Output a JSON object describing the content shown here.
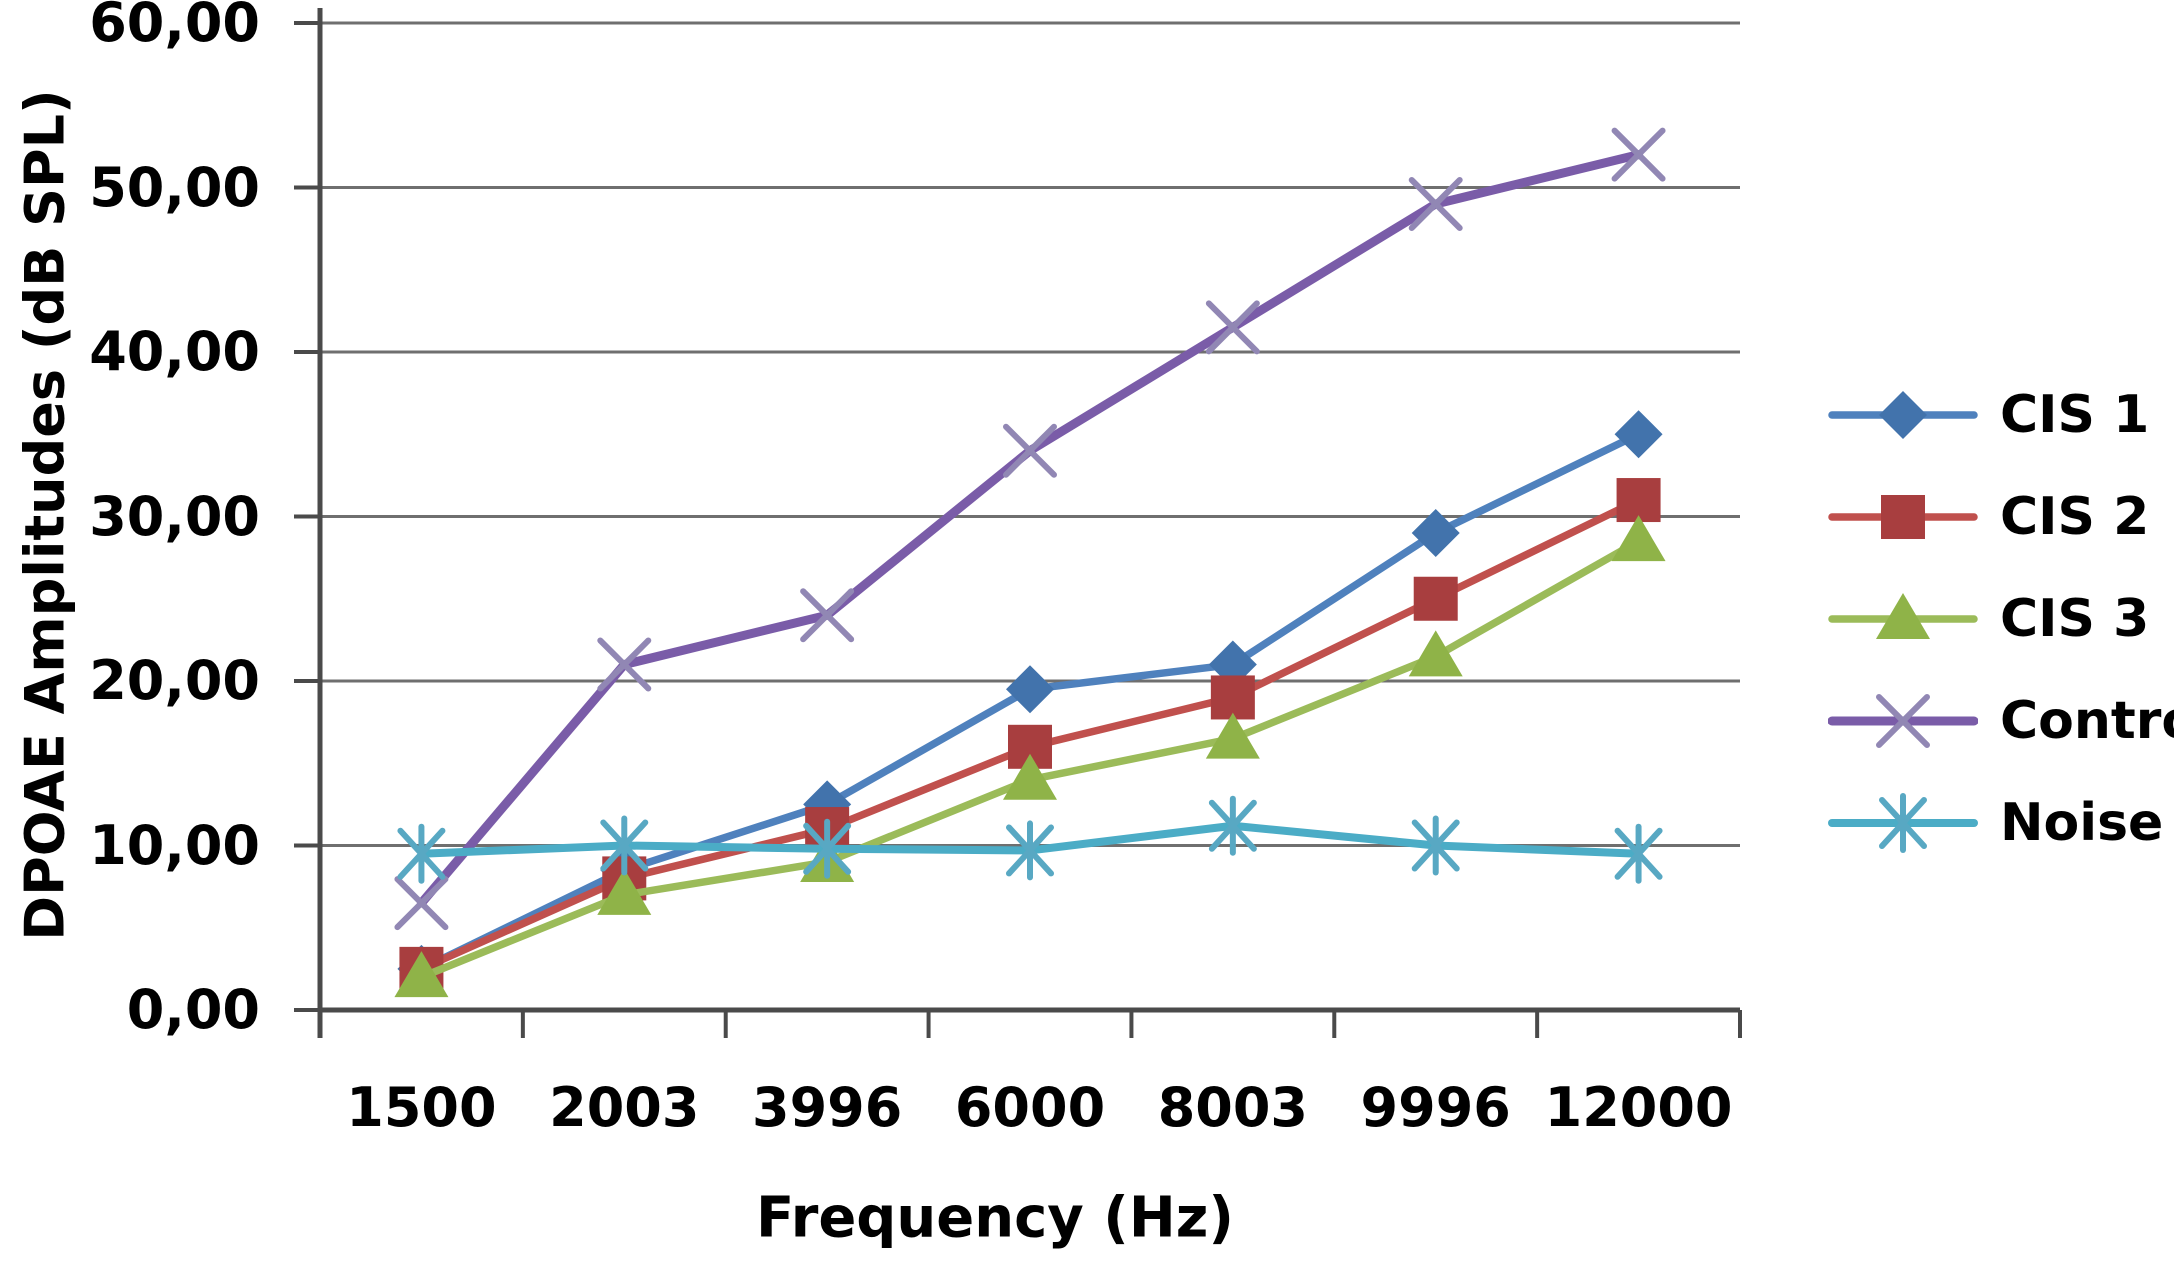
{
  "chart_data": {
    "type": "line",
    "title": "",
    "xlabel": "Frequency (Hz)",
    "ylabel": "DPOAE Amplitudes (dB SPL)",
    "categories": [
      "1500",
      "2003",
      "3996",
      "6000",
      "8003",
      "9996",
      "12000"
    ],
    "y_tick_labels": [
      "0,00",
      "10,00",
      "20,00",
      "30,00",
      "40,00",
      "50,00",
      "60,00"
    ],
    "ylim": [
      0,
      60
    ],
    "y_tick_step": 10,
    "grid": true,
    "legend_position": "right",
    "colors": {
      "grid": "#6F6F6F",
      "axis": "#4A4A4A",
      "text": "#000000",
      "background": "#FFFFFF"
    },
    "series": [
      {
        "name": "CIS 1",
        "marker": "diamond",
        "color": "#4F81BD",
        "marker_color": "#4273AC",
        "values": [
          2.5,
          8.5,
          12.5,
          19.5,
          21,
          29,
          35
        ]
      },
      {
        "name": "CIS 2",
        "marker": "square",
        "color": "#C0504D",
        "marker_color": "#A83E3F",
        "values": [
          2.5,
          8,
          11,
          16,
          19,
          25,
          31
        ]
      },
      {
        "name": "CIS 3",
        "marker": "triangle",
        "color": "#9BBB59",
        "marker_color": "#8FB348",
        "values": [
          2,
          7,
          9,
          14,
          16.5,
          21.5,
          28.5
        ]
      },
      {
        "name": "Control",
        "marker": "x",
        "color": "#7A5CA8",
        "marker_color": "#9187B4",
        "values": [
          6.5,
          21,
          24,
          34,
          41.5,
          49,
          52
        ]
      },
      {
        "name": "Noise",
        "marker": "asterisk",
        "color": "#4BACC6",
        "marker_color": "#58A8C3",
        "values": [
          9.5,
          10,
          9.8,
          9.7,
          11.2,
          10,
          9.5
        ]
      }
    ]
  }
}
